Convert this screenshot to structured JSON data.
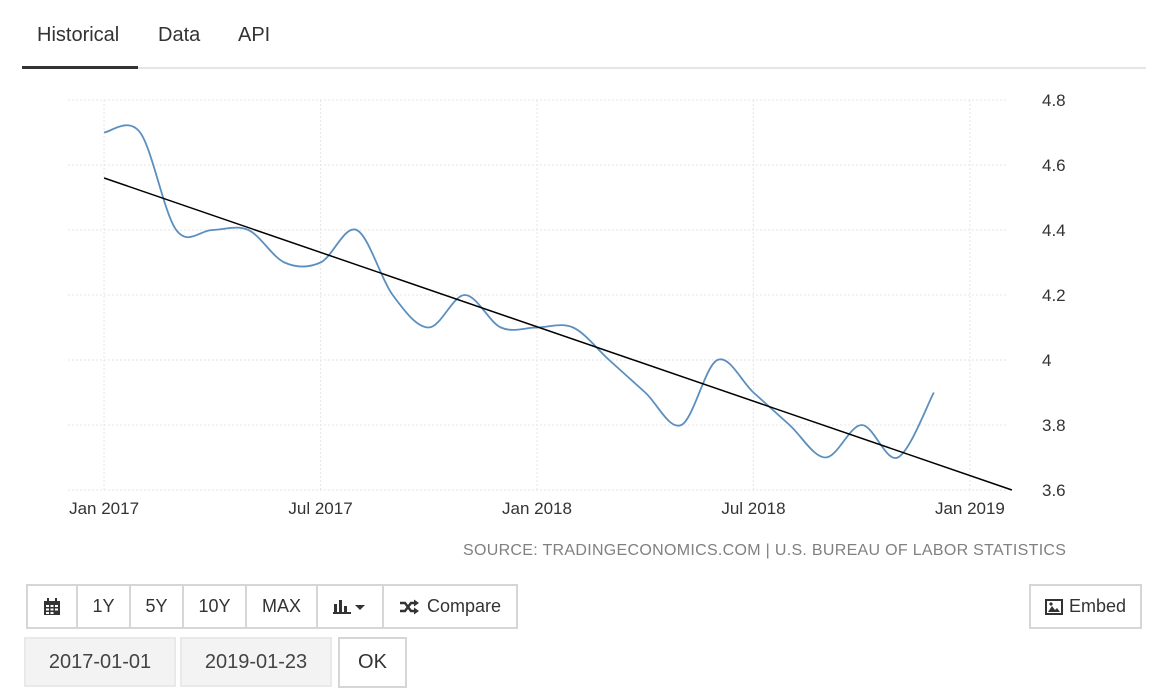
{
  "tabs": [
    {
      "label": "Historical"
    },
    {
      "label": "Data"
    },
    {
      "label": "API"
    }
  ],
  "source_text": "SOURCE: TRADINGECONOMICS.COM | U.S. BUREAU OF LABOR STATISTICS",
  "toolbar": {
    "calendar_icon": "calendar-icon",
    "range_buttons": [
      "1Y",
      "5Y",
      "10Y",
      "MAX"
    ],
    "chart_type_icon": "bar-chart-icon",
    "compare_label": "Compare",
    "compare_icon": "shuffle-icon",
    "embed_label": "Embed",
    "embed_icon": "image-icon"
  },
  "date_range": {
    "start": "2017-01-01",
    "end": "2019-01-23",
    "ok_label": "OK"
  },
  "colors": {
    "series": "#5b8fbf",
    "trend": "#000000",
    "grid": "#e6e6e6"
  },
  "chart_data": {
    "type": "line",
    "x_tick_labels": [
      "Jan 2017",
      "Jul 2017",
      "Jan 2018",
      "Jul 2018",
      "Jan 2019"
    ],
    "x_ticks": [
      "2017-01",
      "2017-07",
      "2018-01",
      "2018-07",
      "2019-01"
    ],
    "y_ticks": [
      3.6,
      3.8,
      4,
      4.2,
      4.4,
      4.6,
      4.8
    ],
    "ylim": [
      3.6,
      4.8
    ],
    "xlim": [
      "2016-12",
      "2019-02"
    ],
    "y_axis_position": "right",
    "grid": true,
    "series": [
      {
        "x": [
          "2017-01",
          "2017-02",
          "2017-03",
          "2017-04",
          "2017-05",
          "2017-06",
          "2017-07",
          "2017-08",
          "2017-09",
          "2017-10",
          "2017-11",
          "2017-12",
          "2018-01",
          "2018-02",
          "2018-03",
          "2018-04",
          "2018-05",
          "2018-06",
          "2018-07",
          "2018-08",
          "2018-09",
          "2018-10",
          "2018-11",
          "2018-12"
        ],
        "values": [
          4.7,
          4.7,
          4.4,
          4.4,
          4.4,
          4.3,
          4.3,
          4.4,
          4.2,
          4.1,
          4.2,
          4.1,
          4.1,
          4.1,
          4.0,
          3.9,
          3.8,
          4.0,
          3.9,
          3.8,
          3.7,
          3.8,
          3.7,
          3.9
        ]
      }
    ],
    "trendline": {
      "x": [
        "2017-01",
        "2019-01"
      ],
      "values": [
        4.56,
        3.6
      ]
    }
  }
}
